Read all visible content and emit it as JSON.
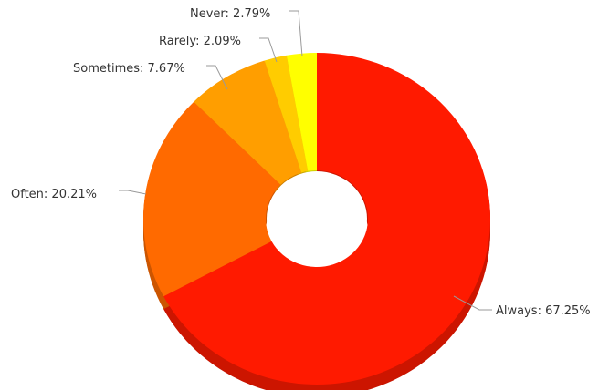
{
  "chart_data": {
    "type": "pie",
    "variant": "donut-3d",
    "categories": [
      "Always",
      "Often",
      "Sometimes",
      "Rarely",
      "Never"
    ],
    "values": [
      67.25,
      20.21,
      7.67,
      2.09,
      2.79
    ],
    "labels": [
      "Always: 67.25%",
      "Often: 20.21%",
      "Sometimes: 7.67%",
      "Rarely: 2.09%",
      "Never: 2.79%"
    ],
    "colors": [
      "#ff1a00",
      "#ff6a00",
      "#ff9e00",
      "#ffcc00",
      "#ffff00"
    ],
    "start_angle": "12 o'clock",
    "direction": "clockwise",
    "legend": "none"
  }
}
